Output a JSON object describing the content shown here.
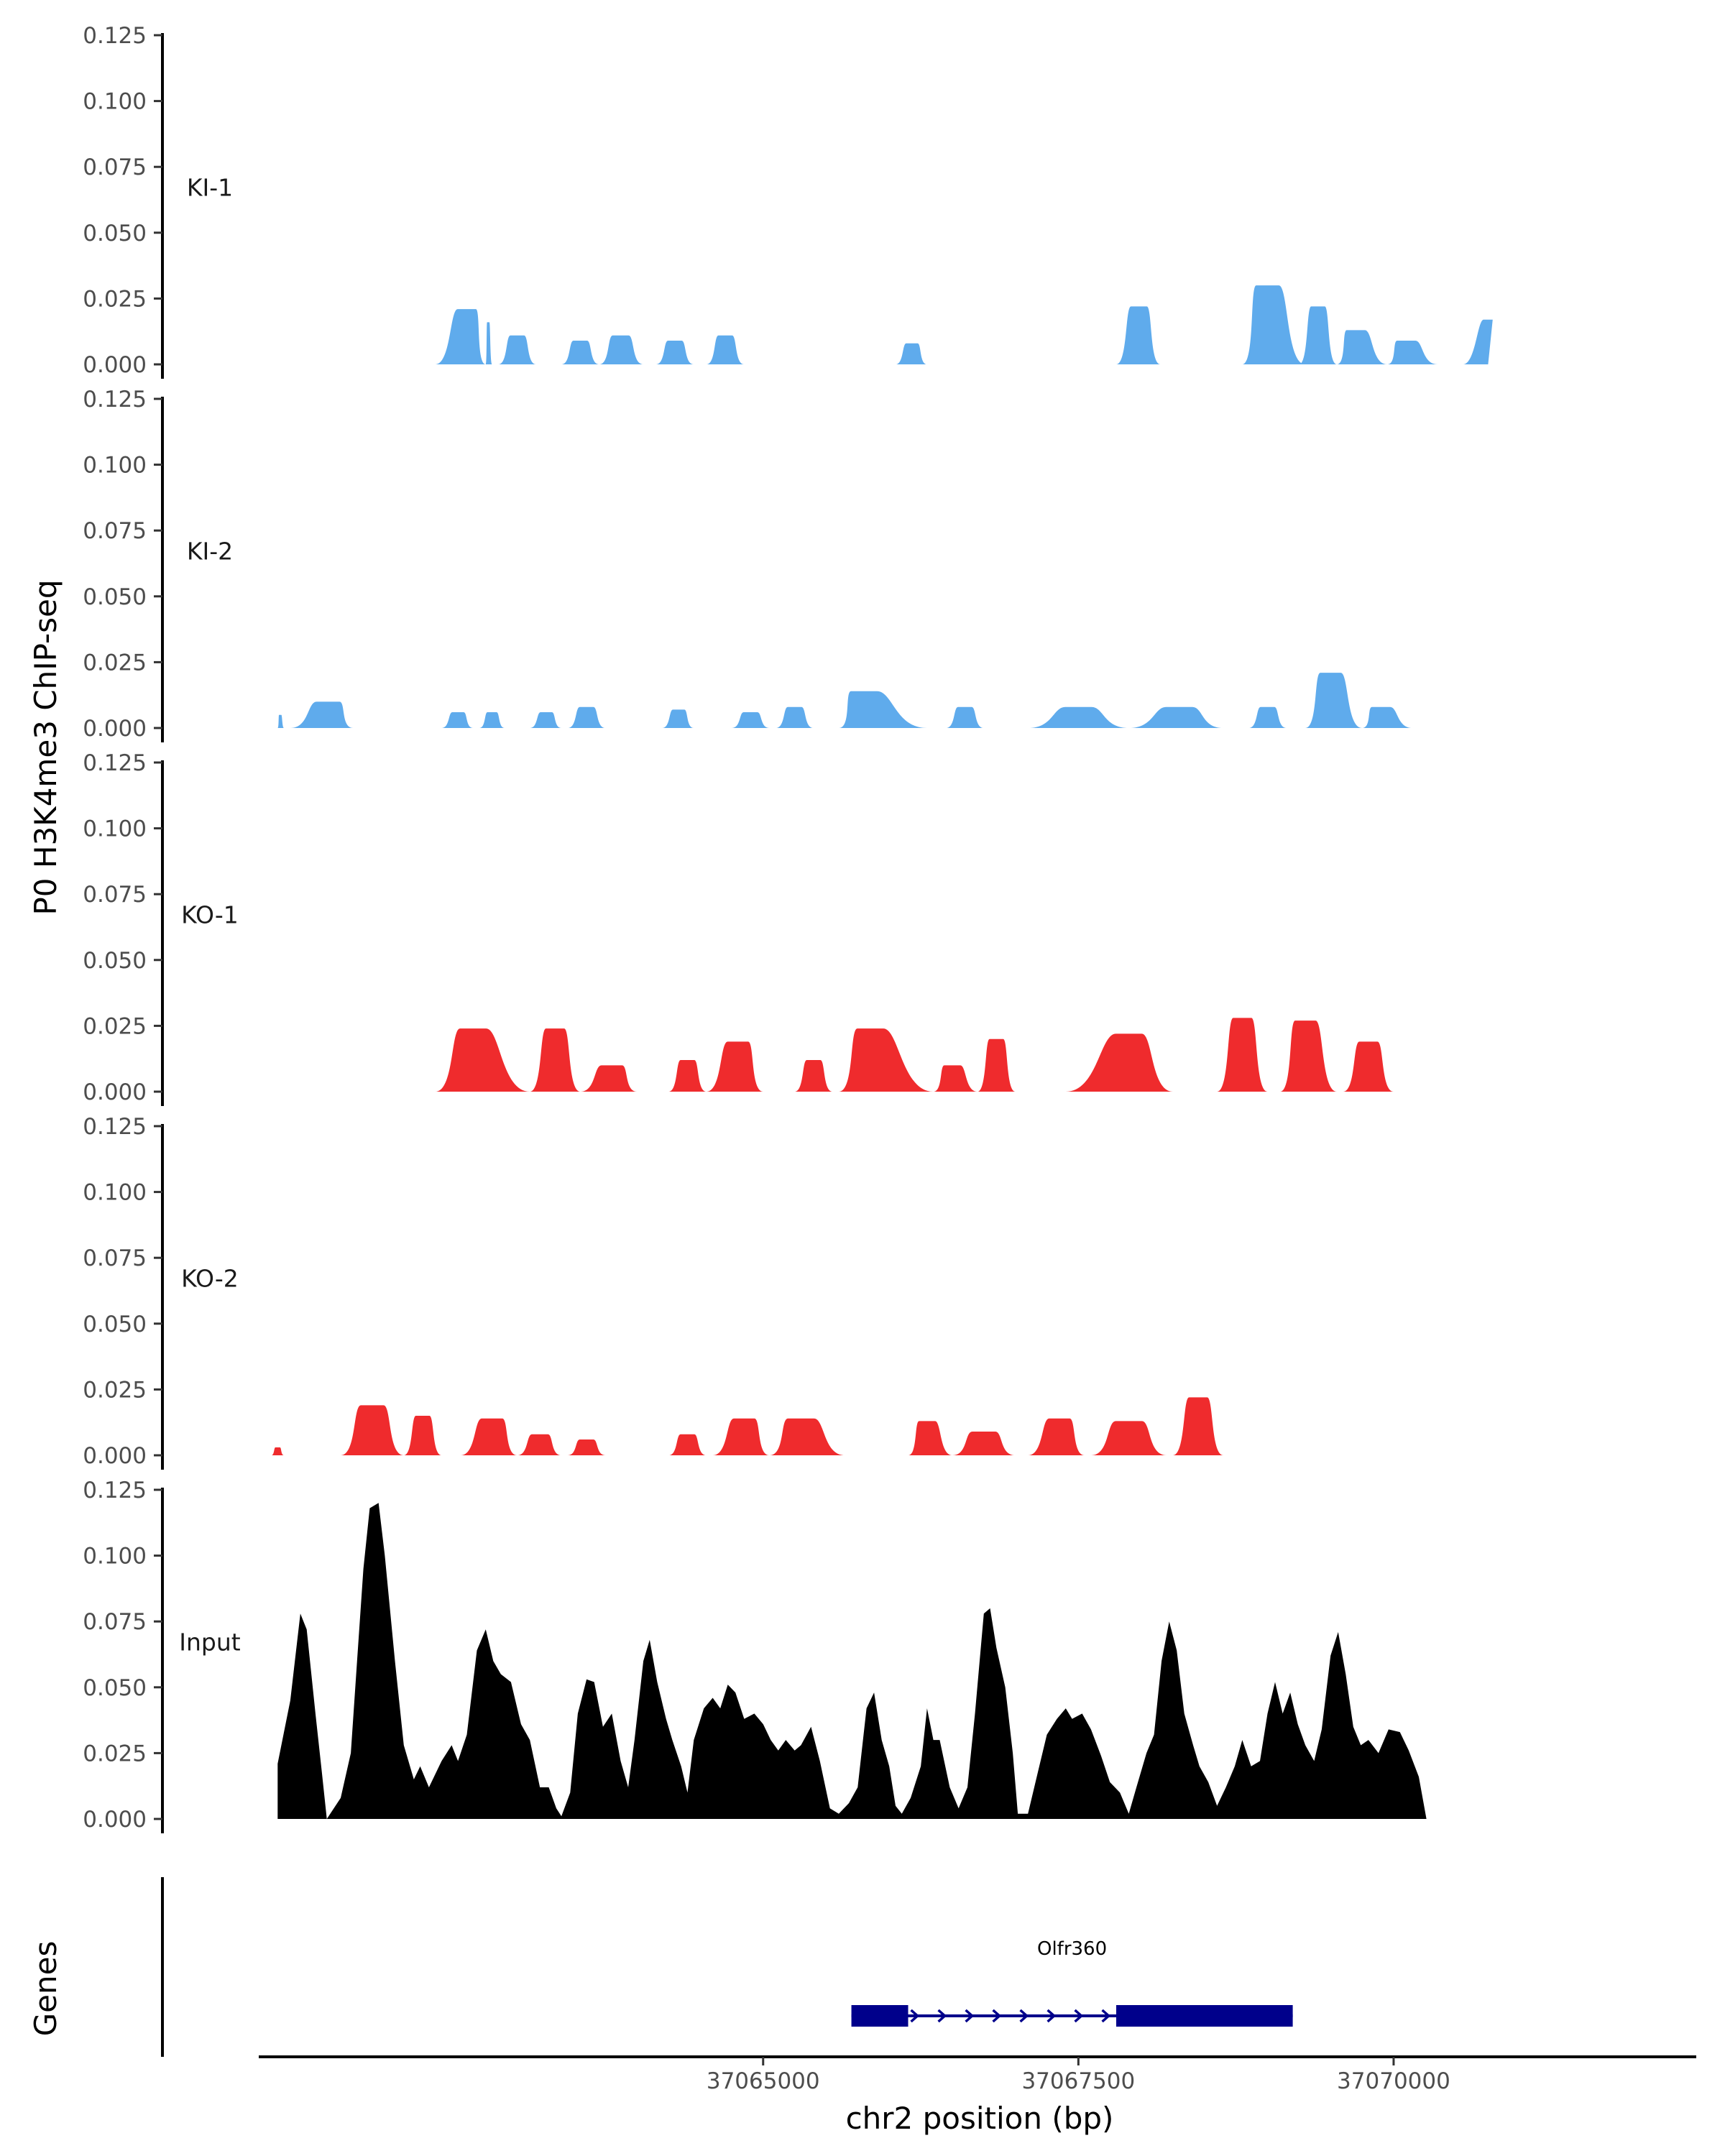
{
  "chart_data": {
    "type": "area",
    "title": "",
    "ylabel": "P0 H3K4me3 ChIP-seq",
    "xlabel": "chr2 position (bp)",
    "xlim": [
      37061000,
      37072400
    ],
    "ylim": [
      0,
      0.125
    ],
    "y_ticks": [
      "0.125",
      "0.100",
      "0.075",
      "0.050",
      "0.025",
      "0.000"
    ],
    "x_ticks": [
      {
        "value": 37065000,
        "label": "37065000"
      },
      {
        "value": 37067500,
        "label": "37067500"
      },
      {
        "value": 37070000,
        "label": "37070000"
      }
    ],
    "colors": {
      "KI": "#5fabec",
      "KO": "#ef2b2d",
      "Input": "#000000",
      "gene": "#00008b"
    },
    "tracks": [
      {
        "name": "KI-1",
        "color": "#5fabec",
        "peaks": [
          [
            37062400,
            37062800,
            0.021,
            37062650
          ],
          [
            37062800,
            37062850,
            0.016,
            37062820
          ],
          [
            37062900,
            37063200,
            0.011,
            37063050
          ],
          [
            37063400,
            37063700,
            0.009,
            37063550
          ],
          [
            37063700,
            37064050,
            0.011,
            37063870
          ],
          [
            37064150,
            37064450,
            0.009,
            37064300
          ],
          [
            37064550,
            37064850,
            0.011,
            37064700
          ],
          [
            37066050,
            37066300,
            0.008,
            37066180
          ],
          [
            37067800,
            37068150,
            0.022,
            37067980
          ],
          [
            37068800,
            37069300,
            0.03,
            37069000
          ],
          [
            37069250,
            37069550,
            0.022,
            37069400
          ],
          [
            37069550,
            37069950,
            0.013,
            37069700
          ],
          [
            37069950,
            37070350,
            0.009,
            37070100
          ],
          [
            37070550,
            37070750,
            0.017,
            37070750
          ]
        ]
      },
      {
        "name": "KI-2",
        "color": "#5fabec",
        "peaks": [
          [
            37061150,
            37061200,
            0.005,
            37061170
          ],
          [
            37061250,
            37061750,
            0.01,
            37061550
          ],
          [
            37062450,
            37062700,
            0.006,
            37062580
          ],
          [
            37062750,
            37062950,
            0.006,
            37062850
          ],
          [
            37063150,
            37063400,
            0.006,
            37063280
          ],
          [
            37063450,
            37063750,
            0.008,
            37063600
          ],
          [
            37064200,
            37064450,
            0.007,
            37064330
          ],
          [
            37064750,
            37065050,
            0.006,
            37064900
          ],
          [
            37065100,
            37065400,
            0.008,
            37065250
          ],
          [
            37065600,
            37066300,
            0.014,
            37065800
          ],
          [
            37066450,
            37066750,
            0.008,
            37066600
          ],
          [
            37067100,
            37067900,
            0.008,
            37067500
          ],
          [
            37067900,
            37068650,
            0.008,
            37068300
          ],
          [
            37068850,
            37069150,
            0.008,
            37069000
          ],
          [
            37069300,
            37069750,
            0.021,
            37069500
          ],
          [
            37069750,
            37070150,
            0.008,
            37069900
          ]
        ]
      },
      {
        "name": "KO-1",
        "color": "#ef2b2d",
        "peaks": [
          [
            37062400,
            37063150,
            0.024,
            37062700
          ],
          [
            37063150,
            37063550,
            0.024,
            37063350
          ],
          [
            37063550,
            37064000,
            0.01,
            37063800
          ],
          [
            37064250,
            37064550,
            0.012,
            37064400
          ],
          [
            37064550,
            37065000,
            0.019,
            37064800
          ],
          [
            37065250,
            37065550,
            0.012,
            37065400
          ],
          [
            37065600,
            37066350,
            0.024,
            37065850
          ],
          [
            37066350,
            37066700,
            0.01,
            37066500
          ],
          [
            37066700,
            37067000,
            0.02,
            37066850
          ],
          [
            37067400,
            37068250,
            0.022,
            37067900
          ],
          [
            37068600,
            37069000,
            0.028,
            37068800
          ],
          [
            37069100,
            37069550,
            0.027,
            37069300
          ],
          [
            37069600,
            37070000,
            0.019,
            37069800
          ]
        ]
      },
      {
        "name": "KO-2",
        "color": "#ef2b2d",
        "peaks": [
          [
            37061100,
            37061200,
            0.003,
            37061150
          ],
          [
            37061650,
            37062150,
            0.019,
            37061900
          ],
          [
            37062150,
            37062450,
            0.015,
            37062300
          ],
          [
            37062600,
            37063050,
            0.014,
            37062850
          ],
          [
            37063050,
            37063400,
            0.008,
            37063230
          ],
          [
            37063450,
            37063750,
            0.006,
            37063600
          ],
          [
            37064250,
            37064550,
            0.008,
            37064400
          ],
          [
            37064600,
            37065050,
            0.014,
            37064850
          ],
          [
            37065050,
            37065650,
            0.014,
            37065300
          ],
          [
            37066150,
            37066500,
            0.013,
            37066300
          ],
          [
            37066500,
            37067000,
            0.009,
            37066750
          ],
          [
            37067100,
            37067550,
            0.014,
            37067350
          ],
          [
            37067600,
            37068200,
            0.013,
            37067900
          ],
          [
            37068250,
            37068650,
            0.022,
            37068450
          ]
        ]
      }
    ],
    "input_track": {
      "name": "Input",
      "color": "#000000",
      "points": [
        [
          37061150,
          0.0
        ],
        [
          37061150,
          0.021
        ],
        [
          37061250,
          0.045
        ],
        [
          37061330,
          0.078
        ],
        [
          37061380,
          0.072
        ],
        [
          37061450,
          0.04
        ],
        [
          37061500,
          0.018
        ],
        [
          37061540,
          0.0
        ],
        [
          37061650,
          0.008
        ],
        [
          37061730,
          0.025
        ],
        [
          37061780,
          0.06
        ],
        [
          37061830,
          0.095
        ],
        [
          37061880,
          0.118
        ],
        [
          37061950,
          0.12
        ],
        [
          37062000,
          0.1
        ],
        [
          37062080,
          0.06
        ],
        [
          37062150,
          0.028
        ],
        [
          37062230,
          0.015
        ],
        [
          37062280,
          0.02
        ],
        [
          37062350,
          0.012
        ],
        [
          37062450,
          0.022
        ],
        [
          37062530,
          0.028
        ],
        [
          37062580,
          0.022
        ],
        [
          37062650,
          0.032
        ],
        [
          37062730,
          0.064
        ],
        [
          37062800,
          0.072
        ],
        [
          37062860,
          0.06
        ],
        [
          37062920,
          0.055
        ],
        [
          37063000,
          0.052
        ],
        [
          37063080,
          0.036
        ],
        [
          37063150,
          0.03
        ],
        [
          37063230,
          0.012
        ],
        [
          37063300,
          0.012
        ],
        [
          37063360,
          0.004
        ],
        [
          37063400,
          0.001
        ],
        [
          37063470,
          0.01
        ],
        [
          37063530,
          0.04
        ],
        [
          37063600,
          0.053
        ],
        [
          37063660,
          0.052
        ],
        [
          37063730,
          0.035
        ],
        [
          37063800,
          0.04
        ],
        [
          37063870,
          0.022
        ],
        [
          37063930,
          0.012
        ],
        [
          37063980,
          0.03
        ],
        [
          37064050,
          0.06
        ],
        [
          37064100,
          0.068
        ],
        [
          37064160,
          0.052
        ],
        [
          37064230,
          0.038
        ],
        [
          37064280,
          0.03
        ],
        [
          37064350,
          0.02
        ],
        [
          37064400,
          0.01
        ],
        [
          37064450,
          0.03
        ],
        [
          37064530,
          0.042
        ],
        [
          37064600,
          0.046
        ],
        [
          37064660,
          0.042
        ],
        [
          37064720,
          0.051
        ],
        [
          37064780,
          0.048
        ],
        [
          37064850,
          0.038
        ],
        [
          37064930,
          0.04
        ],
        [
          37065000,
          0.036
        ],
        [
          37065060,
          0.03
        ],
        [
          37065120,
          0.026
        ],
        [
          37065180,
          0.03
        ],
        [
          37065250,
          0.026
        ],
        [
          37065300,
          0.028
        ],
        [
          37065380,
          0.035
        ],
        [
          37065450,
          0.022
        ],
        [
          37065530,
          0.004
        ],
        [
          37065600,
          0.002
        ],
        [
          37065680,
          0.006
        ],
        [
          37065750,
          0.012
        ],
        [
          37065820,
          0.042
        ],
        [
          37065880,
          0.048
        ],
        [
          37065940,
          0.03
        ],
        [
          37066000,
          0.02
        ],
        [
          37066050,
          0.005
        ],
        [
          37066100,
          0.002
        ],
        [
          37066170,
          0.008
        ],
        [
          37066250,
          0.02
        ],
        [
          37066300,
          0.042
        ],
        [
          37066350,
          0.03
        ],
        [
          37066400,
          0.03
        ],
        [
          37066480,
          0.012
        ],
        [
          37066550,
          0.004
        ],
        [
          37066620,
          0.012
        ],
        [
          37066680,
          0.04
        ],
        [
          37066750,
          0.078
        ],
        [
          37066800,
          0.08
        ],
        [
          37066850,
          0.065
        ],
        [
          37066920,
          0.05
        ],
        [
          37066980,
          0.025
        ],
        [
          37067020,
          0.002
        ],
        [
          37067100,
          0.002
        ],
        [
          37067180,
          0.018
        ],
        [
          37067250,
          0.032
        ],
        [
          37067330,
          0.038
        ],
        [
          37067400,
          0.042
        ],
        [
          37067450,
          0.038
        ],
        [
          37067530,
          0.04
        ],
        [
          37067600,
          0.034
        ],
        [
          37067680,
          0.024
        ],
        [
          37067750,
          0.014
        ],
        [
          37067830,
          0.01
        ],
        [
          37067900,
          0.002
        ],
        [
          37067960,
          0.012
        ],
        [
          37068040,
          0.025
        ],
        [
          37068100,
          0.032
        ],
        [
          37068160,
          0.06
        ],
        [
          37068220,
          0.075
        ],
        [
          37068280,
          0.064
        ],
        [
          37068340,
          0.04
        ],
        [
          37068410,
          0.028
        ],
        [
          37068460,
          0.02
        ],
        [
          37068530,
          0.014
        ],
        [
          37068600,
          0.005
        ],
        [
          37068670,
          0.012
        ],
        [
          37068740,
          0.02
        ],
        [
          37068800,
          0.03
        ],
        [
          37068870,
          0.02
        ],
        [
          37068940,
          0.022
        ],
        [
          37069000,
          0.04
        ],
        [
          37069060,
          0.052
        ],
        [
          37069120,
          0.04
        ],
        [
          37069180,
          0.048
        ],
        [
          37069240,
          0.036
        ],
        [
          37069300,
          0.028
        ],
        [
          37069370,
          0.022
        ],
        [
          37069430,
          0.034
        ],
        [
          37069500,
          0.062
        ],
        [
          37069560,
          0.071
        ],
        [
          37069620,
          0.055
        ],
        [
          37069680,
          0.035
        ],
        [
          37069740,
          0.028
        ],
        [
          37069800,
          0.03
        ],
        [
          37069880,
          0.025
        ],
        [
          37069960,
          0.034
        ],
        [
          37070050,
          0.033
        ],
        [
          37070120,
          0.026
        ],
        [
          37070200,
          0.016
        ],
        [
          37070260,
          0.0
        ]
      ]
    },
    "genes": {
      "label": "Genes",
      "items": [
        {
          "name": "Olfr360",
          "start": 37065700,
          "end": 37069200,
          "strand": "+",
          "exons": [
            [
              37065700,
              37066150
            ],
            [
              37067800,
              37069200
            ]
          ]
        }
      ]
    }
  }
}
